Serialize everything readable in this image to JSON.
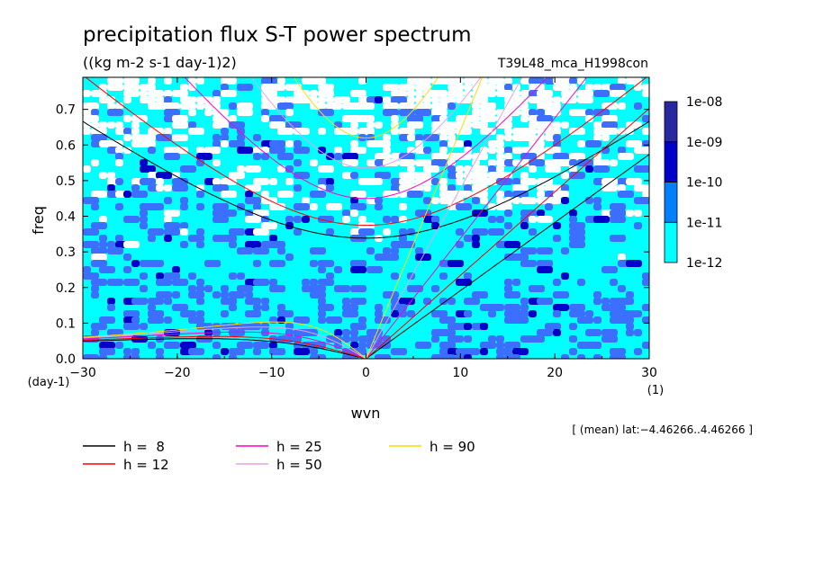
{
  "chart_data": {
    "type": "heatmap",
    "title": "precipitation flux S-T power spectrum",
    "subtitle": "((kg m-2 s-1 day-1)2)",
    "run_label": "T39L48_mca_H1998con",
    "xlabel": "wvn",
    "ylabel": "freq",
    "x_unit": "(1)",
    "y_unit": "(day-1)",
    "xlim": [
      -30,
      30
    ],
    "ylim": [
      0,
      0.79
    ],
    "x_ticks": [
      -30,
      -20,
      -10,
      0,
      10,
      20,
      30
    ],
    "x_tick_labels": [
      "−30",
      "−20",
      "−10",
      "0",
      "10",
      "20",
      "30"
    ],
    "y_ticks": [
      0,
      0.1,
      0.2,
      0.3,
      0.4,
      0.5,
      0.6,
      0.7
    ],
    "y_tick_labels": [
      "0.0",
      "0.1",
      "0.2",
      "0.3",
      "0.4",
      "0.5",
      "0.6",
      "0.7"
    ],
    "colorbar": {
      "levels": [
        "1e-12",
        "1e-11",
        "1e-10",
        "1e-09",
        "1e-08"
      ],
      "colors": [
        "#00ffff",
        "#0080ff",
        "#0000c8",
        "#2828a0"
      ]
    },
    "field_colors": {
      "low": "#ffffff",
      "c1": "#00ffff",
      "c2": "#3c6eff",
      "c3": "#0000c8"
    },
    "dispersion_curves": [
      {
        "label": "h =  8",
        "h": 8,
        "color": "#000000"
      },
      {
        "label": "h = 12",
        "h": 12,
        "color": "#ff0000"
      },
      {
        "label": "h = 25",
        "h": 25,
        "color": "#ff00c8"
      },
      {
        "label": "h = 50",
        "h": 50,
        "color": "#e6a0e6"
      },
      {
        "label": "h = 90",
        "h": 90,
        "color": "#ffdc00"
      }
    ],
    "annotation": "[ (mean) lat:−4.46266..4.46266 ]"
  }
}
